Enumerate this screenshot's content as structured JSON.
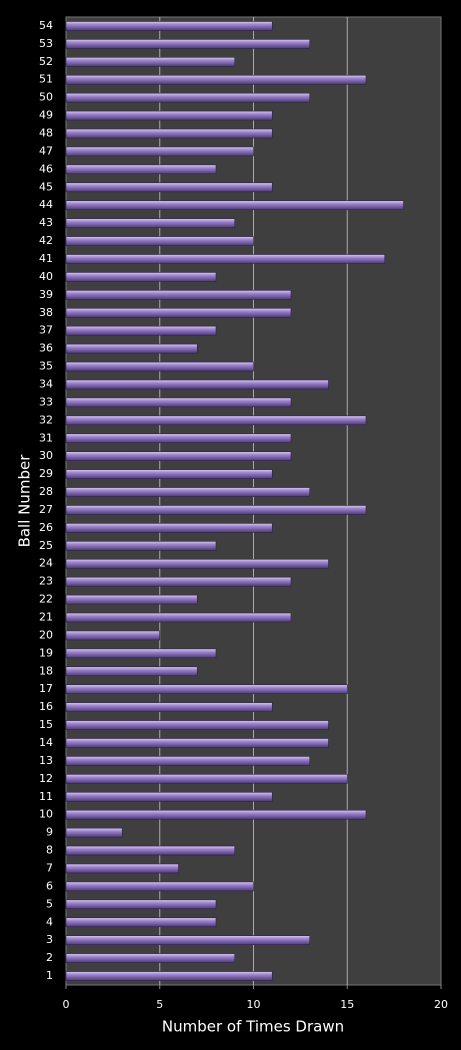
{
  "chart_data": {
    "type": "bar",
    "orientation": "horizontal",
    "x_label": "Number of Times Drawn",
    "y_label": "Ball Number",
    "categories": [
      "1",
      "2",
      "3",
      "4",
      "5",
      "6",
      "7",
      "8",
      "9",
      "10",
      "11",
      "12",
      "13",
      "14",
      "15",
      "16",
      "17",
      "18",
      "19",
      "20",
      "21",
      "22",
      "23",
      "24",
      "25",
      "26",
      "27",
      "28",
      "29",
      "30",
      "31",
      "32",
      "33",
      "34",
      "35",
      "36",
      "37",
      "38",
      "39",
      "40",
      "41",
      "42",
      "43",
      "44",
      "45",
      "46",
      "47",
      "48",
      "49",
      "50",
      "51",
      "52",
      "53",
      "54"
    ],
    "values": [
      11,
      9,
      13,
      8,
      8,
      10,
      6,
      9,
      3,
      16,
      11,
      15,
      13,
      14,
      14,
      11,
      15,
      7,
      8,
      5,
      12,
      7,
      12,
      14,
      8,
      11,
      16,
      13,
      11,
      12,
      12,
      16,
      12,
      14,
      10,
      7,
      8,
      12,
      12,
      8,
      17,
      10,
      9,
      18,
      11,
      8,
      10,
      11,
      11,
      13,
      16,
      9,
      13,
      11
    ],
    "color": "#8a72b8",
    "xlim": [
      0,
      20
    ],
    "xticks": [
      0,
      5,
      10,
      15,
      20
    ],
    "grid": true
  }
}
